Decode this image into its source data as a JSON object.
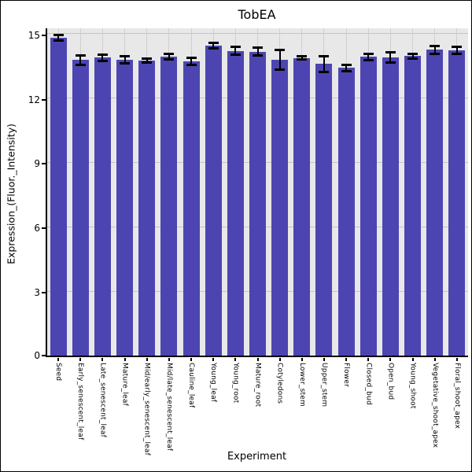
{
  "chart_data": {
    "type": "bar",
    "title": "TobEA",
    "xlabel": "Experiment",
    "ylabel": "Expression_(Fluor._Intensity)",
    "categories": [
      "Seed",
      "Early_senescent_leaf",
      "Late_senescent_leaf",
      "Mature_leaf",
      "Mid/early_senescent_leaf",
      "Mid/late_senescent_leaf",
      "Cauline_leaf",
      "Young_leaf",
      "Young_root",
      "Mature_root",
      "Cotyledons",
      "Lower_stem",
      "Upper_stem",
      "Flower",
      "Closed_bud",
      "Open_bud",
      "Young_shoot",
      "Vegetative_shoot_apex",
      "Floral_shoot_apex"
    ],
    "values": [
      14.8,
      13.77,
      13.89,
      13.79,
      13.75,
      13.93,
      13.71,
      14.44,
      14.2,
      14.16,
      13.77,
      13.87,
      13.59,
      13.4,
      13.92,
      13.89,
      13.95,
      14.25,
      14.23
    ],
    "errors": [
      0.13,
      0.23,
      0.15,
      0.17,
      0.09,
      0.14,
      0.18,
      0.13,
      0.19,
      0.19,
      0.46,
      0.07,
      0.36,
      0.14,
      0.15,
      0.25,
      0.11,
      0.19,
      0.16
    ],
    "yticks": [
      0,
      3,
      6,
      9,
      12,
      15
    ],
    "ylim": [
      0,
      15.25
    ],
    "grid": "on",
    "legend": "none",
    "bar_color": "#4c45b1",
    "panel_bg": "#e8e8e8",
    "grid_color": "#cccccc",
    "error_color": "#000000"
  }
}
